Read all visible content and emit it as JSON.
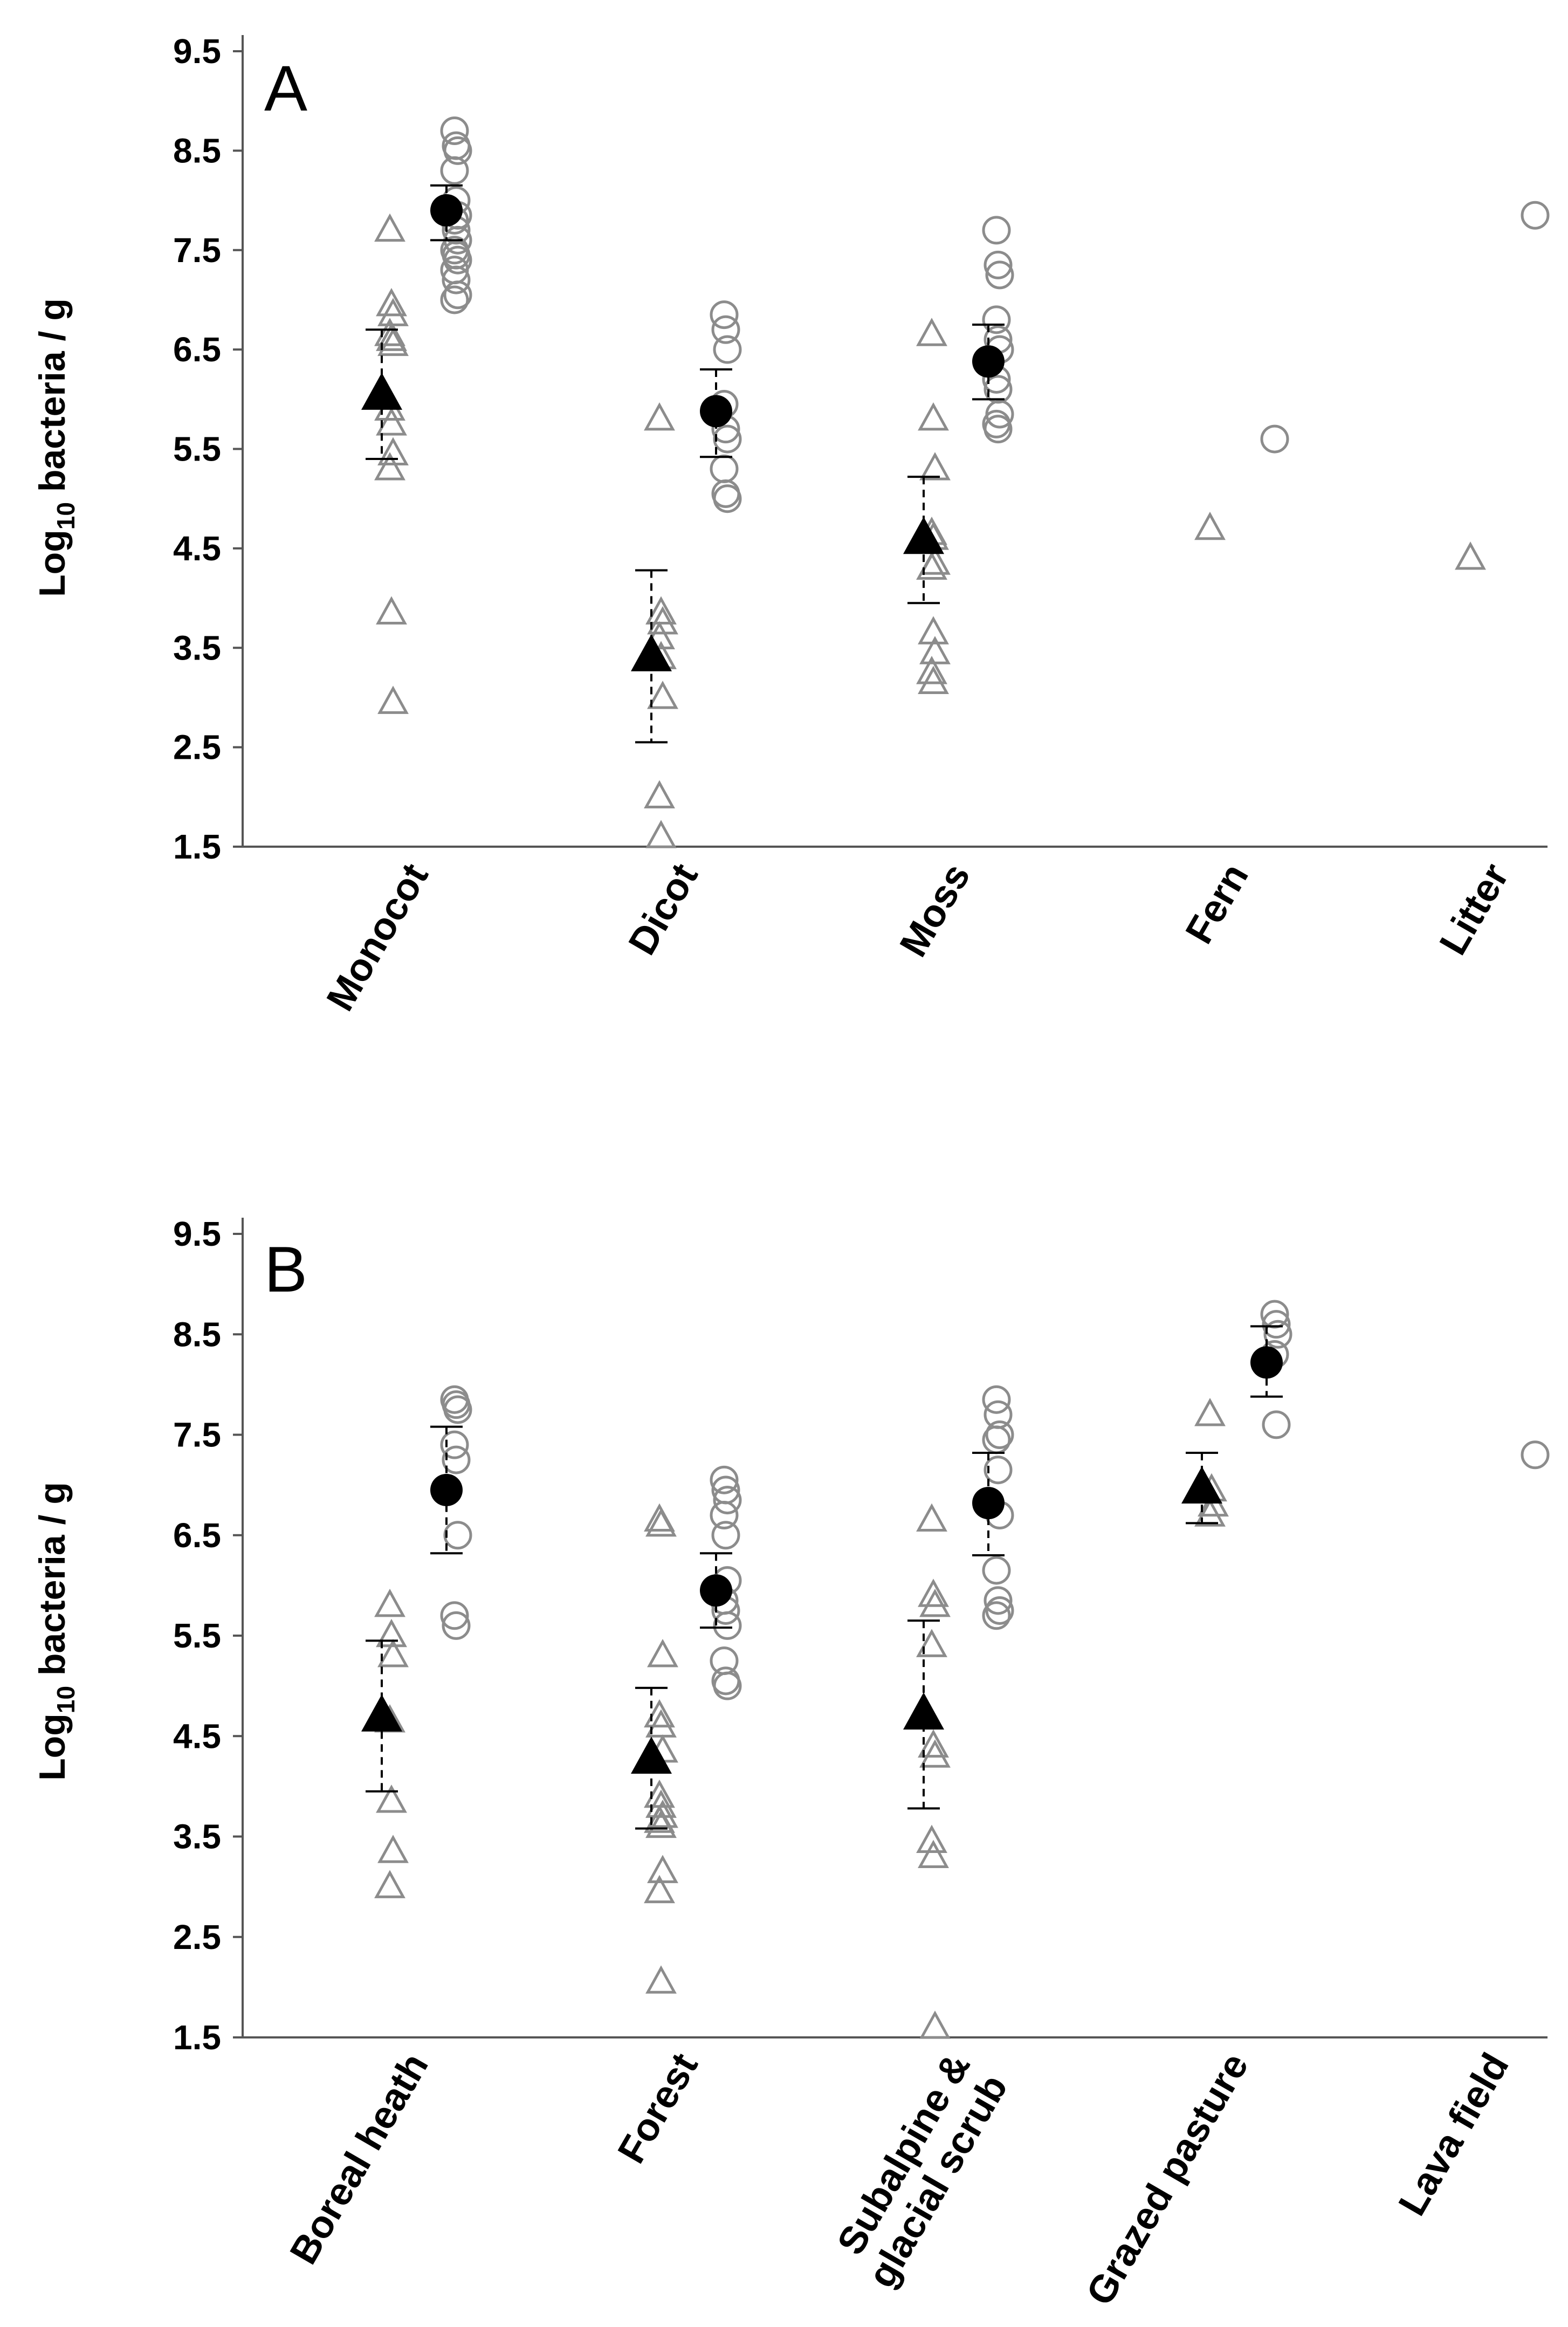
{
  "chart_data": [
    {
      "type": "scatter",
      "panel": "A",
      "ylabel": "Log10 bacteria / g",
      "ylabel_main": "Log",
      "ylabel_sub": "10",
      "ylabel_rest": " bacteria / g",
      "ylim": [
        1.5,
        9.5
      ],
      "yticks": [
        1.5,
        2.5,
        3.5,
        4.5,
        5.5,
        6.5,
        7.5,
        8.5,
        9.5
      ],
      "ytick_labels": [
        "1.5",
        "2.5",
        "3.5",
        "4.5",
        "5.5",
        "6.5",
        "7.5",
        "8.5",
        "9.5"
      ],
      "categories": [
        {
          "label": [
            "Monocot"
          ]
        },
        {
          "label": [
            "Dicot"
          ]
        },
        {
          "label": [
            "Moss"
          ]
        },
        {
          "label": [
            "Fern"
          ]
        },
        {
          "label": [
            "Litter"
          ]
        }
      ],
      "series": [
        {
          "name": "triangle individual",
          "values": [
            [
              7.7,
              6.95,
              6.85,
              6.65,
              6.6,
              6.55,
              5.9,
              5.75,
              5.45,
              5.3,
              3.85,
              2.95
            ],
            [
              5.8,
              3.85,
              3.75,
              3.6,
              3.4,
              3.0,
              2.0,
              1.6
            ],
            [
              6.65,
              5.8,
              5.3,
              4.65,
              4.6,
              4.35,
              4.3,
              3.65,
              3.45,
              3.25,
              3.15
            ],
            [
              4.7
            ],
            [
              4.4
            ]
          ]
        },
        {
          "name": "circle individual",
          "values": [
            [
              8.7,
              8.55,
              8.5,
              8.3,
              8.0,
              7.85,
              7.8,
              7.7,
              7.6,
              7.5,
              7.45,
              7.4,
              7.3,
              7.2,
              7.05,
              7.0
            ],
            [
              6.85,
              6.7,
              6.5,
              5.95,
              5.7,
              5.6,
              5.3,
              5.05,
              5.0
            ],
            [
              7.7,
              7.35,
              7.25,
              6.8,
              6.6,
              6.5,
              6.2,
              6.1,
              5.85,
              5.75,
              5.7
            ],
            [
              5.6
            ],
            [
              7.85
            ]
          ]
        },
        {
          "name": "triangle mean",
          "values": [
            6.05,
            3.42,
            4.6,
            null,
            null
          ],
          "err_low": [
            5.4,
            2.55,
            3.95,
            null,
            null
          ],
          "err_high": [
            6.7,
            4.28,
            5.22,
            null,
            null
          ]
        },
        {
          "name": "circle mean",
          "values": [
            7.9,
            5.88,
            6.38,
            null,
            null
          ],
          "err_low": [
            7.6,
            5.42,
            6.0,
            null,
            null
          ],
          "err_high": [
            8.15,
            6.3,
            6.75,
            null,
            null
          ]
        }
      ]
    },
    {
      "type": "scatter",
      "panel": "B",
      "ylabel": "Log10 bacteria / g",
      "ylabel_main": "Log",
      "ylabel_sub": "10",
      "ylabel_rest": " bacteria / g",
      "ylim": [
        1.5,
        9.5
      ],
      "yticks": [
        1.5,
        2.5,
        3.5,
        4.5,
        5.5,
        6.5,
        7.5,
        8.5,
        9.5
      ],
      "ytick_labels": [
        "1.5",
        "2.5",
        "3.5",
        "4.5",
        "5.5",
        "6.5",
        "7.5",
        "8.5",
        "9.5"
      ],
      "categories": [
        {
          "label": [
            "Boreal heath"
          ]
        },
        {
          "label": [
            "Forest"
          ]
        },
        {
          "label": [
            "Subalpine &",
            "glacial scrub"
          ]
        },
        {
          "label": [
            "Grazed pasture"
          ]
        },
        {
          "label": [
            "Lava field"
          ]
        }
      ],
      "series": [
        {
          "name": "triangle individual",
          "values": [
            [
              5.8,
              5.5,
              5.3,
              4.65,
              3.85,
              3.35,
              3.0
            ],
            [
              6.65,
              6.6,
              5.3,
              4.7,
              4.6,
              4.35,
              3.9,
              3.8,
              3.7,
              3.65,
              3.6,
              3.15,
              2.95,
              2.05
            ],
            [
              6.65,
              5.9,
              5.8,
              5.4,
              4.4,
              4.3,
              3.45,
              3.3,
              1.6
            ],
            [
              7.7,
              6.95,
              6.8,
              6.7
            ],
            []
          ]
        },
        {
          "name": "circle individual",
          "values": [
            [
              7.85,
              7.8,
              7.75,
              7.4,
              7.25,
              6.5,
              5.7,
              5.6
            ],
            [
              7.05,
              6.95,
              6.85,
              6.7,
              6.5,
              6.05,
              5.85,
              5.75,
              5.6,
              5.25,
              5.05,
              5.0
            ],
            [
              7.85,
              7.7,
              7.5,
              7.45,
              7.15,
              6.7,
              6.15,
              5.85,
              5.75,
              5.7
            ],
            [
              8.7,
              8.6,
              8.5,
              8.3,
              7.6
            ],
            [
              7.3
            ]
          ]
        },
        {
          "name": "triangle mean",
          "values": [
            4.7,
            4.28,
            4.72,
            6.97,
            null
          ],
          "err_low": [
            3.95,
            3.58,
            3.78,
            6.62,
            null
          ],
          "err_high": [
            5.45,
            4.98,
            5.65,
            7.32,
            null
          ]
        },
        {
          "name": "circle mean",
          "values": [
            6.95,
            5.95,
            6.82,
            8.22,
            null
          ],
          "err_low": [
            6.32,
            5.58,
            6.3,
            7.88,
            null
          ],
          "err_high": [
            7.58,
            6.32,
            7.32,
            8.58,
            null
          ]
        }
      ]
    }
  ],
  "colors": {
    "open_marker": "#8c8c8c",
    "filled_marker": "#000000",
    "axis": "#555555",
    "text": "#000000"
  }
}
